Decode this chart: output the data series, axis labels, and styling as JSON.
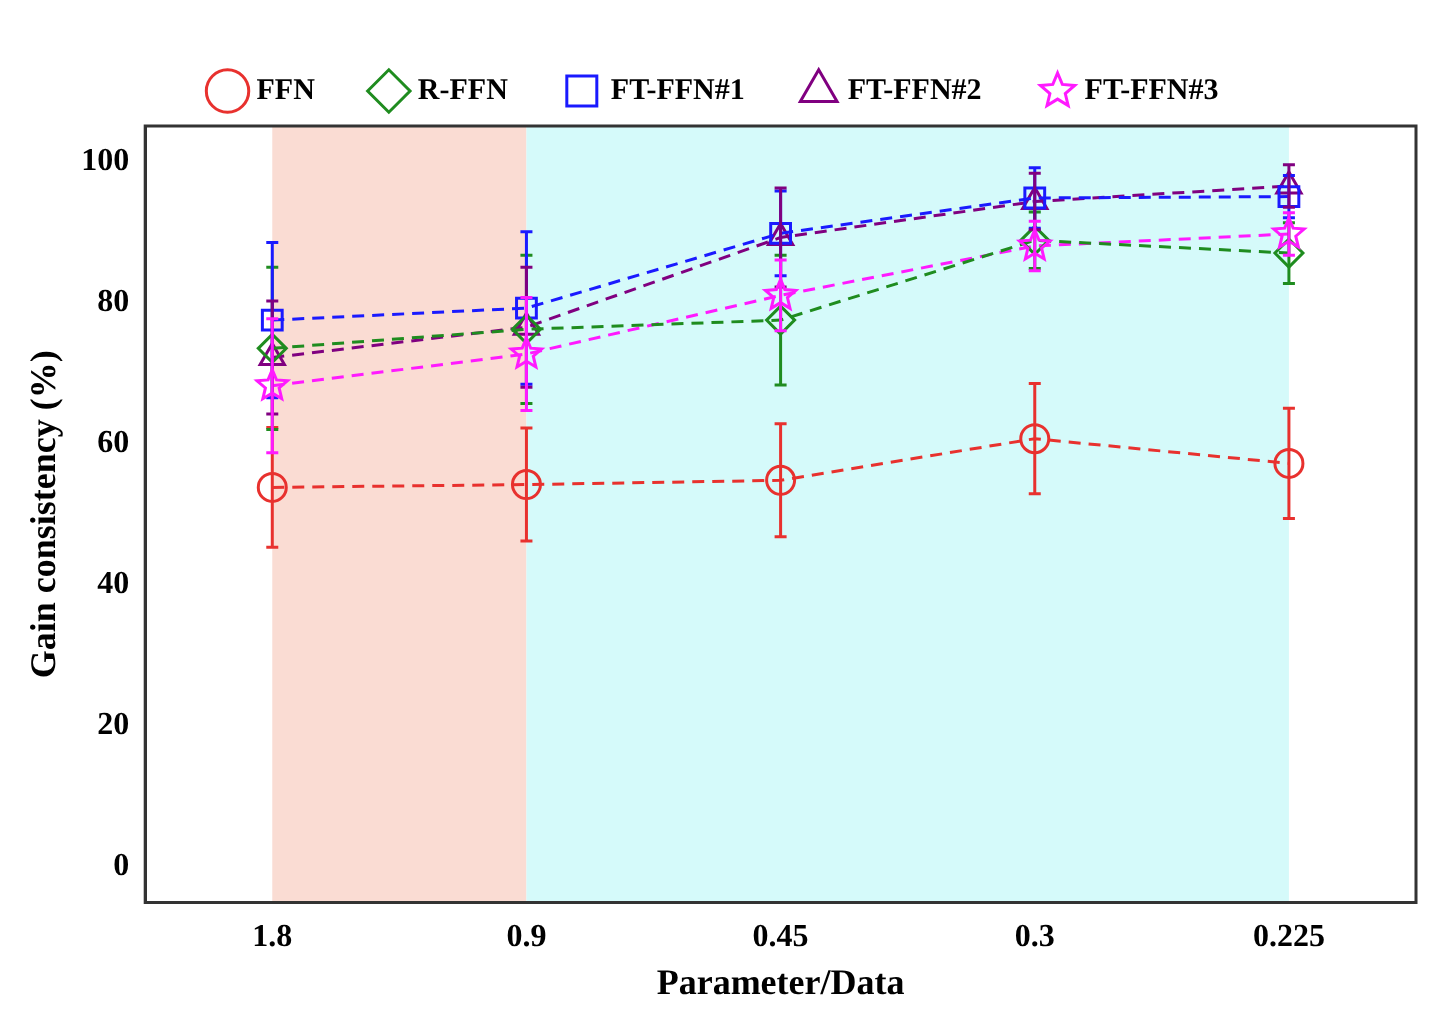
{
  "chart_data": {
    "type": "line",
    "xlabel": "Parameter/Data",
    "ylabel": "Gain consistency (%)",
    "categories": [
      "1.8",
      "0.9",
      "0.45",
      "0.3",
      "0.225"
    ],
    "ylim": [
      -5,
      105
    ],
    "yticks": [
      0,
      20,
      40,
      60,
      80,
      100
    ],
    "grid": false,
    "legend": "top",
    "line_style": "dashed",
    "bands": [
      {
        "axis": "x",
        "from": "1.8",
        "to": "0.9",
        "color": "#fadcd3"
      },
      {
        "axis": "x",
        "from": "0.9",
        "to": "0.225",
        "color": "#d5fafa"
      }
    ],
    "series": [
      {
        "name": "FFN",
        "color": "#e8312e",
        "marker": "circle",
        "values": [
          53.8,
          54.2,
          54.8,
          60.7,
          57.2
        ],
        "errors": [
          8.5,
          8,
          8,
          7.8,
          7.8
        ]
      },
      {
        "name": "R-FFN",
        "color": "#1f8c1f",
        "marker": "diamond",
        "values": [
          73.5,
          76.2,
          77.5,
          88.8,
          87
        ],
        "errors": [
          11.5,
          10.5,
          9.2,
          4,
          4.3
        ]
      },
      {
        "name": "FT-FFN#1",
        "color": "#1a1aff",
        "marker": "square",
        "values": [
          77.5,
          79.2,
          89.8,
          94.8,
          95
        ],
        "errors": [
          11,
          10.8,
          6,
          4.3,
          3
        ]
      },
      {
        "name": "FT-FFN#2",
        "color": "#800080",
        "marker": "triangle",
        "values": [
          72.2,
          76.5,
          89.2,
          94.3,
          96.5
        ],
        "errors": [
          8,
          8.5,
          7,
          4,
          3
        ]
      },
      {
        "name": "FT-FFN#3",
        "color": "#ff1aff",
        "marker": "star",
        "values": [
          68.2,
          72.7,
          81,
          88,
          89.7
        ],
        "errors": [
          9.5,
          8,
          5,
          3.5,
          3
        ]
      }
    ]
  }
}
